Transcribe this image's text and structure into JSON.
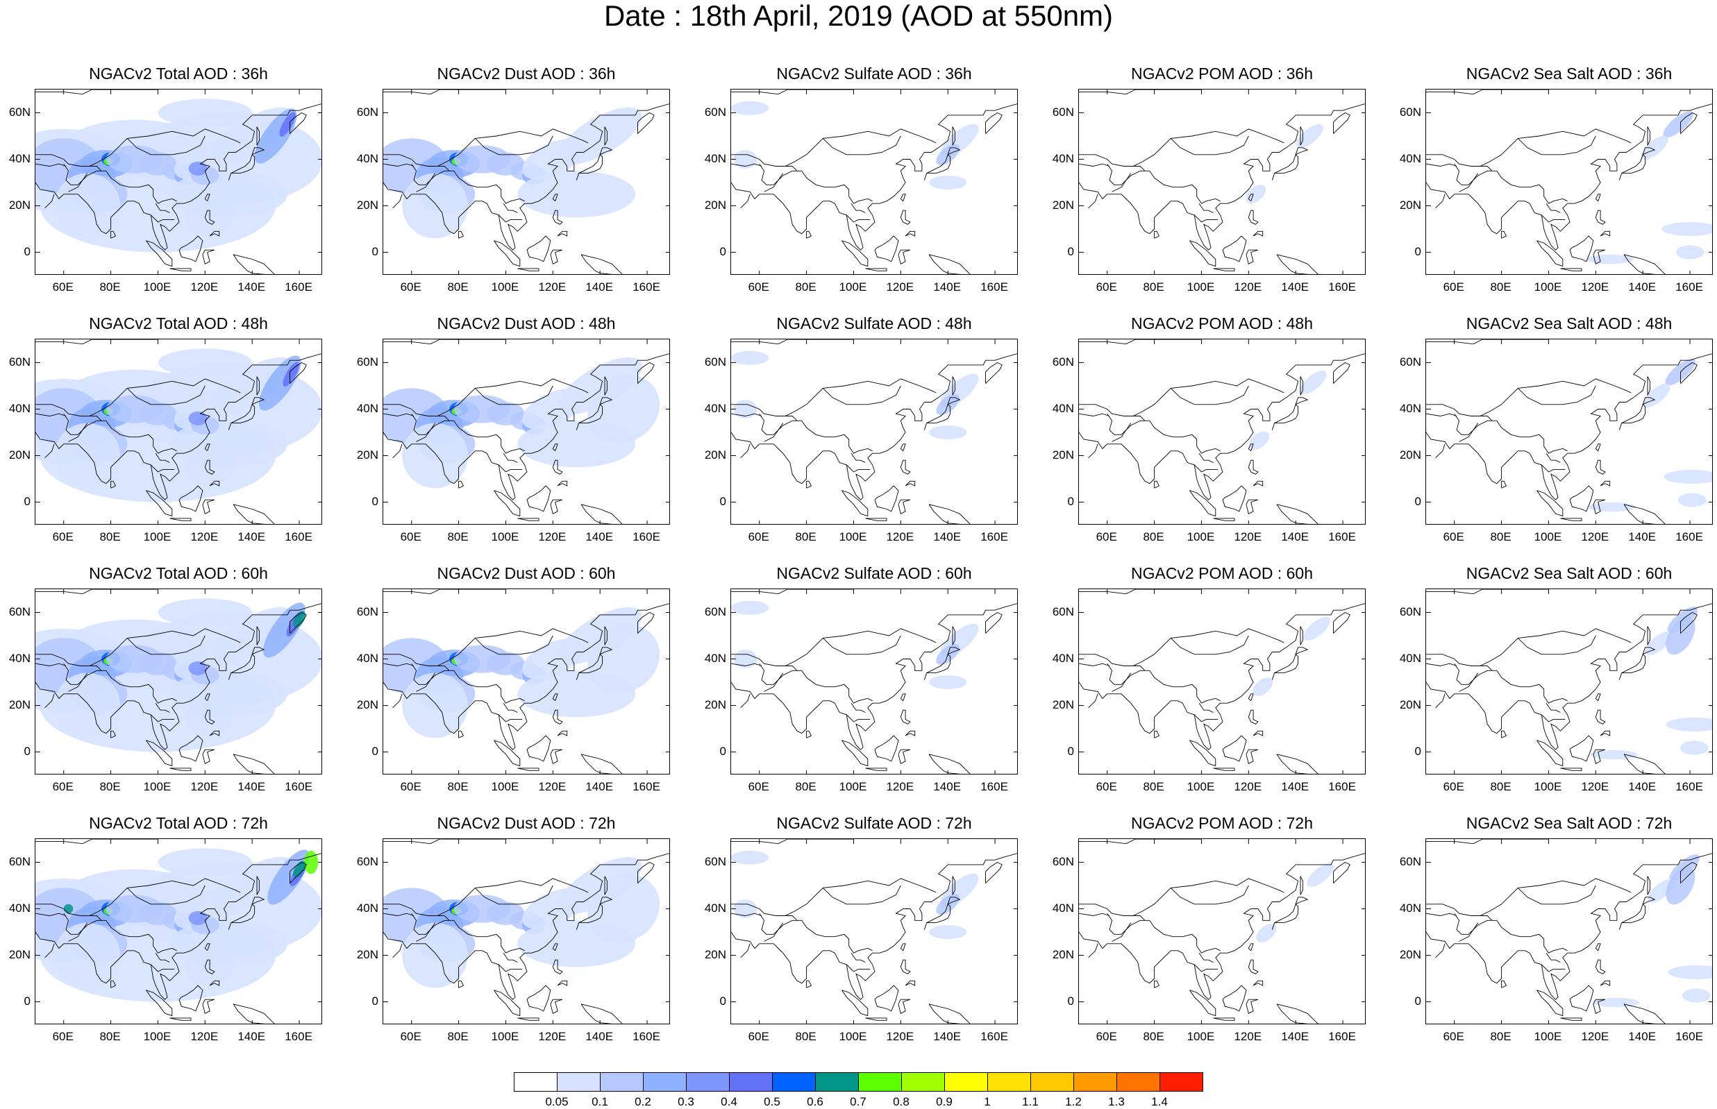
{
  "title": "Date : 18th April, 2019 (AOD at 550nm)",
  "lat_labels": [
    "60N",
    "40N",
    "20N",
    "0"
  ],
  "lat_values": [
    60,
    40,
    20,
    0
  ],
  "lon_labels": [
    "60E",
    "80E",
    "100E",
    "120E",
    "140E",
    "160E"
  ],
  "lon_values": [
    60,
    80,
    100,
    120,
    140,
    160
  ],
  "map_extent": {
    "lon": [
      48,
      170
    ],
    "lat": [
      -10,
      70
    ]
  },
  "panels": [
    [
      "NGACv2 Total AOD : 36h",
      "NGACv2 Dust AOD : 36h",
      "NGACv2 Sulfate AOD : 36h",
      "NGACv2 POM AOD : 36h",
      "NGACv2 Sea Salt AOD : 36h"
    ],
    [
      "NGACv2 Total AOD : 48h",
      "NGACv2 Dust AOD : 48h",
      "NGACv2 Sulfate AOD : 48h",
      "NGACv2 POM AOD : 48h",
      "NGACv2 Sea Salt AOD : 48h"
    ],
    [
      "NGACv2 Total AOD : 60h",
      "NGACv2 Dust AOD : 60h",
      "NGACv2 Sulfate AOD : 60h",
      "NGACv2 POM AOD : 60h",
      "NGACv2 Sea Salt AOD : 60h"
    ],
    [
      "NGACv2 Total AOD : 72h",
      "NGACv2 Dust AOD : 72h",
      "NGACv2 Sulfate AOD : 72h",
      "NGACv2 POM AOD : 72h",
      "NGACv2 Sea Salt  AOD : 72h"
    ]
  ],
  "colorbar": {
    "labels": [
      "0.05",
      "0.1",
      "0.2",
      "0.3",
      "0.4",
      "0.5",
      "0.6",
      "0.7",
      "0.8",
      "0.9",
      "1",
      "1.1",
      "1.2",
      "1.3",
      "1.4"
    ],
    "colors": [
      "#ffffff",
      "#d6e2ff",
      "#b5c9ff",
      "#8eb2ff",
      "#7f96ff",
      "#6370f8",
      "#0062ff",
      "#00968a",
      "#5cff00",
      "#a0ff00",
      "#ffff00",
      "#ffe100",
      "#ffc800",
      "#ff9b00",
      "#ff7300",
      "#ff1f00"
    ]
  }
}
